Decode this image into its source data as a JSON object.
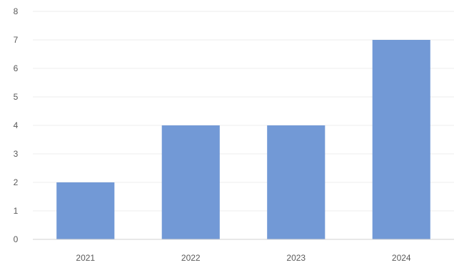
{
  "chart_data": {
    "type": "bar",
    "categories": [
      "2021",
      "2022",
      "2023",
      "2024"
    ],
    "values": [
      2,
      4,
      4,
      7
    ],
    "ylim": [
      0,
      8
    ],
    "yticks": [
      "0",
      "1",
      "2",
      "3",
      "4",
      "5",
      "6",
      "7",
      "8"
    ],
    "grid": true,
    "legend": "none",
    "colors": {
      "bar": "#7299D6",
      "grid": "#EDEDED",
      "axis": "#D0D0D0",
      "text": "#595959"
    }
  }
}
